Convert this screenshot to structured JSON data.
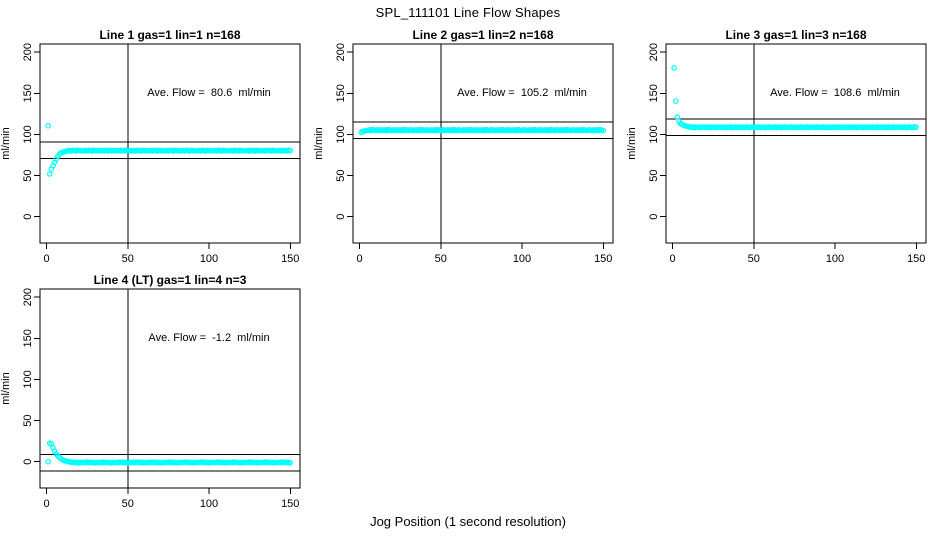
{
  "title": "SPL_111101  Line Flow Shapes",
  "xlabel": "Jog Position (1 second resolution)",
  "colors": {
    "points": "#00ffff",
    "axis": "#000000",
    "text": "#000000",
    "background": "#ffffff"
  },
  "axes": {
    "ylabel": "ml/min",
    "x_ticks": [
      0,
      50,
      100,
      150
    ],
    "y_ticks": [
      0,
      50,
      100,
      150,
      200
    ],
    "xlim": [
      -4,
      156
    ],
    "ylim": [
      -32,
      210
    ],
    "grid": false,
    "marker": "open-circle"
  },
  "chart_data": [
    {
      "type": "scatter",
      "title": "Line 1 gas=1 lin=1 n=168",
      "annotation": "Ave. Flow =  80.6  ml/min",
      "ave_flow": 80.6,
      "hlines": [
        90.6,
        70.6
      ],
      "vline": 50,
      "x_start": 1,
      "x_step": 1,
      "y": [
        110.5,
        52,
        58,
        62,
        66,
        70,
        73.5,
        76,
        77.5,
        78.5,
        79,
        79.4,
        80.2,
        80.6,
        79.9,
        80.8,
        80.4,
        79.8,
        80.9,
        80.3,
        80.5,
        80,
        80.2,
        80.6,
        79.9,
        80.8,
        80.4,
        79.8,
        80.9,
        80.3,
        80.5,
        80,
        80.2,
        80.6,
        79.9,
        80.8,
        80.4,
        79.8,
        80.9,
        80.3,
        80.5,
        80,
        80.2,
        80.6,
        79.9,
        80.8,
        80.4,
        79.8,
        80.9,
        80.3,
        80.5,
        80,
        80.2,
        80.6,
        79.9,
        80.8,
        80.4,
        79.8,
        80.9,
        80.3,
        80.5,
        80,
        80.2,
        80.6,
        79.9,
        80.8,
        80.4,
        79.8,
        80.9,
        80.3,
        80.5,
        80,
        80.2,
        80.6,
        79.9,
        80.8,
        80.4,
        79.8,
        80.9,
        80.3,
        80.5,
        80,
        80.2,
        80.6,
        79.9,
        80.8,
        80.4,
        79.8,
        80.9,
        80.3,
        80.5,
        80,
        80.2,
        80.6,
        79.9,
        80.8,
        80.4,
        79.8,
        80.9,
        80.3,
        80.5,
        80,
        80.2,
        80.6,
        79.9,
        80.8,
        80.4,
        79.8,
        80.9,
        80.3,
        80.5,
        80,
        80.2,
        80.6,
        79.9,
        80.8,
        80.4,
        79.8,
        80.9,
        80.3,
        80.5,
        80,
        80.2,
        80.6,
        79.9,
        80.8,
        80.4,
        79.8,
        80.9,
        80.3,
        80.5,
        80,
        80.2,
        80.6,
        79.9,
        80.8,
        80.4,
        79.8,
        80.9,
        80.3,
        80.5,
        80,
        80.2,
        80.6,
        79.9,
        80.8,
        80.4,
        79.8,
        80.9,
        80.3
      ]
    },
    {
      "type": "scatter",
      "title": "Line 2 gas=1 lin=2 n=168",
      "annotation": "Ave. Flow =  105.2  ml/min",
      "ave_flow": 105.2,
      "hlines": [
        115.2,
        95.2
      ],
      "vline": 50,
      "x_start": 1,
      "x_step": 1,
      "y": [
        102.6,
        103.6,
        104.2,
        104.6,
        105,
        105.6,
        104.7,
        105.9,
        105.2,
        104.8,
        105.7,
        105.3,
        104.9,
        105.5,
        105,
        105.6,
        104.7,
        105.9,
        105.2,
        104.8,
        105.7,
        105.3,
        104.9,
        105.5,
        105,
        105.6,
        104.7,
        105.9,
        105.2,
        104.8,
        105.7,
        105.3,
        104.9,
        105.5,
        105,
        105.6,
        104.7,
        105.9,
        105.2,
        104.8,
        105.7,
        105.3,
        104.9,
        105.5,
        105,
        105.6,
        104.7,
        105.9,
        105.2,
        104.8,
        105.7,
        105.3,
        104.9,
        105.5,
        105,
        105.6,
        104.7,
        105.9,
        105.2,
        104.8,
        105.7,
        105.3,
        104.9,
        105.5,
        105,
        105.6,
        104.7,
        105.9,
        105.2,
        104.8,
        105.7,
        105.3,
        104.9,
        105.5,
        105,
        105.6,
        104.7,
        105.9,
        105.2,
        104.8,
        105.7,
        105.3,
        104.9,
        105.5,
        105,
        105.6,
        104.7,
        105.9,
        105.2,
        104.8,
        105.7,
        105.3,
        104.9,
        105.5,
        105,
        105.6,
        104.7,
        105.9,
        105.2,
        104.8,
        105.7,
        105.3,
        104.9,
        105.5,
        105,
        105.6,
        104.7,
        105.9,
        105.2,
        104.8,
        105.7,
        105.3,
        104.9,
        105.5,
        105,
        105.6,
        104.7,
        105.9,
        105.2,
        104.8,
        105.7,
        105.3,
        104.9,
        105.5,
        105,
        105.6,
        104.7,
        105.9,
        105.2,
        104.8,
        105.7,
        105.3,
        104.9,
        105.5,
        105,
        105.6,
        104.7,
        105.9,
        105.2,
        104.8,
        105.7,
        105.3,
        104.9,
        105.5,
        105,
        105.6,
        104.7,
        105.9,
        105.2,
        104.8
      ]
    },
    {
      "type": "scatter",
      "title": "Line 3 gas=1 lin=3 n=168",
      "annotation": "Ave. Flow =  108.6  ml/min",
      "ave_flow": 108.6,
      "hlines": [
        118.6,
        98.6
      ],
      "vline": 50,
      "x_start": 1,
      "x_step": 1,
      "y": [
        181,
        140.5,
        121,
        116,
        113.5,
        112,
        111,
        110.3,
        109.8,
        109.4,
        108.9,
        108.5,
        109.1,
        108.3,
        108.8,
        109,
        108.4,
        108.7,
        109.2,
        108.6,
        108.9,
        108.5,
        109.1,
        108.3,
        108.8,
        109,
        108.4,
        108.7,
        109.2,
        108.6,
        108.9,
        108.5,
        109.1,
        108.3,
        108.8,
        109,
        108.4,
        108.7,
        109.2,
        108.6,
        108.9,
        108.5,
        109.1,
        108.3,
        108.8,
        109,
        108.4,
        108.7,
        109.2,
        108.6,
        108.9,
        108.5,
        109.1,
        108.3,
        108.8,
        109,
        108.4,
        108.7,
        109.2,
        108.6,
        108.9,
        108.5,
        109.1,
        108.3,
        108.8,
        109,
        108.4,
        108.7,
        109.2,
        108.6,
        108.9,
        108.5,
        109.1,
        108.3,
        108.8,
        109,
        108.4,
        108.7,
        109.2,
        108.6,
        108.9,
        108.5,
        109.1,
        108.3,
        108.8,
        109,
        108.4,
        108.7,
        109.2,
        108.6,
        108.9,
        108.5,
        109.1,
        108.3,
        108.8,
        109,
        108.4,
        108.7,
        109.2,
        108.6,
        108.9,
        108.5,
        109.1,
        108.3,
        108.8,
        109,
        108.4,
        108.7,
        109.2,
        108.6,
        108.9,
        108.5,
        109.1,
        108.3,
        108.8,
        109,
        108.4,
        108.7,
        109.2,
        108.6,
        108.9,
        108.5,
        109.1,
        108.3,
        108.8,
        109,
        108.4,
        108.7,
        109.2,
        108.6,
        108.9,
        108.5,
        109.1,
        108.3,
        108.8,
        109,
        108.4,
        108.7,
        109.2,
        108.6,
        108.9,
        108.5,
        109.1,
        108.3,
        108.8,
        109,
        108.4,
        108.7,
        109.2,
        108.6
      ]
    },
    {
      "type": "scatter",
      "title": "Line 4 (LT) gas=1 lin=4 n=3",
      "annotation": "Ave. Flow =  -1.2  ml/min",
      "ave_flow": -1.2,
      "hlines": [
        8.8,
        -11.2
      ],
      "vline": 50,
      "x_start": 1,
      "x_step": 1,
      "y": [
        0,
        22.5,
        21.5,
        17,
        13,
        9.5,
        7,
        5,
        3.5,
        2.3,
        1.4,
        0.7,
        0.2,
        -0.2,
        -0.5,
        -1,
        -0.6,
        -1.3,
        -0.8,
        -1.5,
        -0.9,
        -1.2,
        -0.7,
        -1.1,
        -0.4,
        -1,
        -0.6,
        -1.3,
        -0.8,
        -1.5,
        -0.9,
        -1.2,
        -0.7,
        -1.1,
        -0.4,
        -1,
        -0.6,
        -1.3,
        -0.8,
        -1.5,
        -0.9,
        -1.2,
        -0.7,
        -1.1,
        -0.4,
        -1,
        -0.6,
        -1.3,
        -0.8,
        -1.5,
        -0.9,
        -1.2,
        -0.7,
        -1.1,
        -0.4,
        -1,
        -0.6,
        -1.3,
        -0.8,
        -1.5,
        -0.9,
        -1.2,
        -0.7,
        -1.1,
        -0.4,
        -1,
        -0.6,
        -1.3,
        -0.8,
        -1.5,
        -0.9,
        -1.2,
        -0.7,
        -1.1,
        -0.4,
        -1,
        -0.6,
        -1.3,
        -0.8,
        -1.5,
        -0.9,
        -1.2,
        -0.7,
        -1.1,
        -0.4,
        -1,
        -0.6,
        -1.3,
        -0.8,
        -1.5,
        -0.9,
        -1.2,
        -0.7,
        -1.1,
        -0.4,
        -1,
        -0.6,
        -1.3,
        -0.8,
        -1.5,
        -0.9,
        -1.2,
        -0.7,
        -1.1,
        -0.4,
        -1,
        -0.6,
        -1.3,
        -0.8,
        -1.5,
        -0.9,
        -1.2,
        -0.7,
        -1.1,
        -0.4,
        -1,
        -0.6,
        -1.3,
        -0.8,
        -1.5,
        -0.9,
        -1.2,
        -0.7,
        -1.1,
        -0.4,
        -1,
        -0.6,
        -1.3,
        -0.8,
        -1.5,
        -0.9,
        -1.2,
        -0.7,
        -1.1,
        -0.4,
        -1,
        -0.6,
        -1.3,
        -0.8,
        -1.5,
        -0.9,
        -1.2,
        -0.7,
        -1.1,
        -0.4,
        -1,
        -0.6,
        -1.3,
        -0.8,
        -1.5
      ]
    }
  ]
}
